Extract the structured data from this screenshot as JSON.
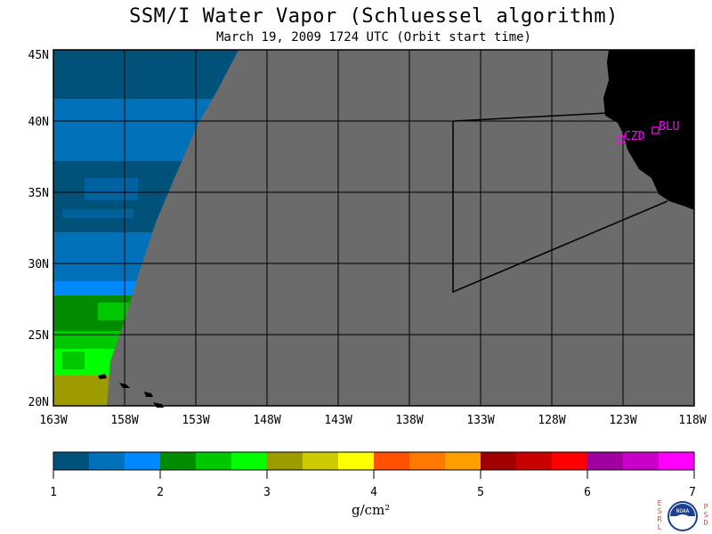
{
  "header": {
    "title": "SSM/I Water Vapor (Schluessel algorithm)",
    "subtitle": "March 19, 2009  1724 UTC  (Orbit start time)"
  },
  "map": {
    "lat_labels": [
      "45N",
      "40N",
      "35N",
      "30N",
      "25N",
      "20N"
    ],
    "lon_labels": [
      "163W",
      "158W",
      "153W",
      "148W",
      "143W",
      "138W",
      "133W",
      "128W",
      "123W",
      "118W"
    ],
    "stations": [
      {
        "id": "CZD"
      },
      {
        "id": "BLU"
      }
    ],
    "colors": {
      "no_data": "#6b6b6b",
      "land": "#000000",
      "station": "#ff00ff"
    }
  },
  "colorbar": {
    "tick_labels": [
      "1",
      "2",
      "3",
      "4",
      "5",
      "6",
      "7"
    ],
    "unit": "g/cm²",
    "colors": [
      "#00527a",
      "#0070b8",
      "#0088ff",
      "#008c00",
      "#00c800",
      "#00ff00",
      "#9c9c00",
      "#cccc00",
      "#ffff00",
      "#ff5000",
      "#ff7800",
      "#ffa000",
      "#a00000",
      "#c80000",
      "#ff0000",
      "#a000a0",
      "#c800c8",
      "#ff00ff"
    ]
  },
  "logo": {
    "left_letters": "ESRL",
    "right_letters": "PSD",
    "center_text": "NOAA"
  }
}
